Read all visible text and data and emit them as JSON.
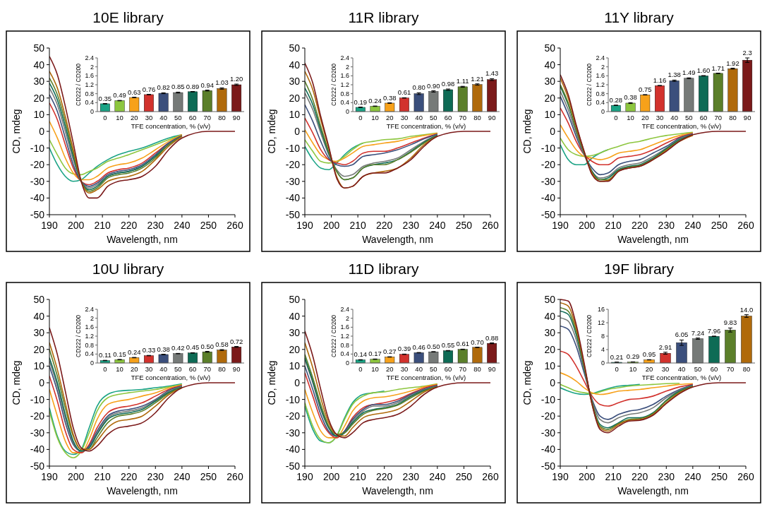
{
  "chart_data": [
    {
      "type": "line",
      "title": "10E library",
      "xlabel": "Wavelength, nm",
      "ylabel": "CD, mdeg",
      "xlim": [
        190,
        260
      ],
      "xticks": [
        190,
        200,
        210,
        220,
        230,
        240,
        250,
        260
      ],
      "ylim": [
        -50,
        50
      ],
      "yticks": [
        -50,
        -40,
        -30,
        -20,
        -10,
        0,
        10,
        20,
        30,
        40,
        50
      ],
      "x": [
        190,
        193,
        196,
        199,
        202,
        205,
        208,
        212,
        216,
        220,
        225,
        230,
        235,
        240,
        250,
        260
      ],
      "series": [
        {
          "color": "#1aa385",
          "values": [
            -10,
            -20,
            -27,
            -30,
            -29,
            -25,
            -21,
            -17,
            -14,
            -12,
            -10,
            -7,
            -4,
            -2,
            null,
            null
          ]
        },
        {
          "color": "#8dc63f",
          "values": [
            -5,
            -14,
            -22,
            -25.5,
            -26,
            -24,
            -22,
            -18,
            -16,
            -14,
            -11,
            -8,
            -5,
            -2,
            null,
            null
          ]
        },
        {
          "color": "#f7a11a",
          "values": [
            6,
            -4,
            -16,
            -25,
            -29,
            -29,
            -27,
            -22,
            -20,
            -19,
            -16,
            -11,
            -6,
            -2,
            null,
            null
          ]
        },
        {
          "color": "#d2322d",
          "values": [
            17,
            7,
            -8,
            -22,
            -30,
            -32,
            -30,
            -25,
            -23,
            -22,
            -19,
            -13,
            -7,
            -2.5,
            null,
            null
          ]
        },
        {
          "color": "#3b4f7c",
          "values": [
            22,
            12,
            -4,
            -20,
            -30,
            -33,
            -31,
            -26,
            -24,
            -23,
            -20,
            -14,
            -7,
            -2.5,
            null,
            null
          ]
        },
        {
          "color": "#767a78",
          "values": [
            26,
            16,
            0,
            -17,
            -30,
            -34,
            -32,
            -27,
            -25,
            -24,
            -21,
            -15,
            -8,
            -3,
            null,
            null
          ]
        },
        {
          "color": "#0e6b55",
          "values": [
            29,
            19,
            3,
            -15,
            -30,
            -35,
            -33,
            -27,
            -25,
            -24,
            -21,
            -15,
            -8,
            -3,
            null,
            null
          ]
        },
        {
          "color": "#5b7f2a",
          "values": [
            32,
            22,
            6,
            -13,
            -30,
            -36,
            -34,
            -28,
            -26,
            -25,
            -22,
            -16,
            -8,
            -3,
            null,
            null
          ]
        },
        {
          "color": "#b06a0b",
          "values": [
            36,
            26,
            9,
            -11,
            -30,
            -37,
            -35,
            -30,
            -28,
            -27,
            -24,
            -17,
            -9,
            -3,
            null,
            null
          ]
        },
        {
          "color": "#7b1a1a",
          "values": [
            45,
            34,
            15,
            -7,
            -30,
            -40,
            -40,
            -33,
            -30,
            -29,
            -27,
            -21,
            -11,
            -4,
            0,
            0
          ]
        }
      ]
    },
    {
      "type": "bar",
      "xlabel": "TFE concentration, % (v/v)",
      "ylabel": "CD222 / CD200",
      "categories": [
        "0",
        "10",
        "20",
        "30",
        "40",
        "50",
        "60",
        "70",
        "80",
        "90"
      ],
      "values": [
        0.35,
        0.49,
        0.63,
        0.76,
        0.82,
        0.85,
        0.89,
        0.94,
        1.03,
        1.2
      ],
      "value_labels": [
        "0.35",
        "0.49",
        "0.63",
        "0.76",
        "0.82",
        "0.85",
        "0.89",
        "0.94",
        "1.03",
        "1.20"
      ],
      "errors": [
        0.01,
        0.01,
        0.01,
        0.01,
        0.02,
        0.02,
        0.01,
        0.02,
        0.03,
        0.03
      ],
      "colors": [
        "#1aa385",
        "#8dc63f",
        "#f7a11a",
        "#d2322d",
        "#3b4f7c",
        "#767a78",
        "#0e6b55",
        "#5b7f2a",
        "#b06a0b",
        "#7b1a1a"
      ],
      "ylim": [
        0,
        2.4
      ],
      "yticks": [
        0,
        0.4,
        0.8,
        1.2,
        1.6,
        2,
        2.4
      ]
    },
    {
      "type": "line",
      "title": "11R library",
      "xlabel": "Wavelength, nm",
      "ylabel": "CD, mdeg",
      "xlim": [
        190,
        260
      ],
      "xticks": [
        190,
        200,
        210,
        220,
        230,
        240,
        250,
        260
      ],
      "ylim": [
        -50,
        50
      ],
      "yticks": [
        -50,
        -40,
        -30,
        -20,
        -10,
        0,
        10,
        20,
        30,
        40,
        50
      ],
      "x": [
        190,
        193,
        196,
        199,
        202,
        205,
        208,
        212,
        216,
        220,
        225,
        230,
        235,
        240,
        250,
        260
      ],
      "series": [
        {
          "color": "#1aa385",
          "values": [
            -9,
            -17,
            -22,
            -23,
            -19,
            -14,
            -10,
            -7,
            null,
            null,
            null,
            null,
            null,
            null,
            null,
            null
          ]
        },
        {
          "color": "#8dc63f",
          "values": [
            -5,
            -12,
            -18,
            -19,
            -18,
            -15,
            -11,
            -7,
            -6,
            -5,
            -4.5,
            -3,
            -2,
            -1,
            null,
            null
          ]
        },
        {
          "color": "#f7a11a",
          "values": [
            1,
            -7,
            -14,
            -17,
            -18,
            -16,
            -13,
            -9,
            -8,
            -7,
            -6,
            -4,
            -2.5,
            -1.2,
            null,
            null
          ]
        },
        {
          "color": "#d2322d",
          "values": [
            8,
            -1,
            -11,
            -17,
            -19,
            -20,
            -18,
            -13,
            -12,
            -12,
            -10,
            -7,
            -4,
            -1.5,
            null,
            null
          ]
        },
        {
          "color": "#3b4f7c",
          "values": [
            16,
            6,
            -6,
            -16,
            -20,
            -21,
            -20,
            -15,
            -14,
            -13,
            -11,
            -8,
            -4.5,
            -1.7,
            null,
            null
          ]
        },
        {
          "color": "#767a78",
          "values": [
            23,
            13,
            -1,
            -14,
            -23,
            -27,
            -26,
            -21,
            -19,
            -18,
            -16,
            -11,
            -6,
            -2,
            null,
            null
          ]
        },
        {
          "color": "#0e6b55",
          "values": [
            26,
            16,
            1,
            -13,
            -24,
            -29,
            -28,
            -22,
            -20,
            -19,
            -17,
            -12,
            -6.5,
            -2.3,
            null,
            null
          ]
        },
        {
          "color": "#5b7f2a",
          "values": [
            30,
            19,
            3,
            -12,
            -24,
            -29,
            -28,
            -22,
            -20,
            -20,
            -17,
            -12.5,
            -7,
            -2.6,
            null,
            null
          ]
        },
        {
          "color": "#b06a0b",
          "values": [
            36,
            25,
            7,
            -10,
            -27,
            -34,
            -33,
            -27,
            -25,
            -24,
            -22,
            -16,
            -8,
            -3,
            null,
            null
          ]
        },
        {
          "color": "#7b1a1a",
          "values": [
            41,
            29,
            9,
            -9,
            -28,
            -34,
            -33,
            -27,
            -25,
            -25,
            -22,
            -17,
            -9,
            -3,
            0,
            0
          ]
        }
      ]
    },
    {
      "type": "bar",
      "xlabel": "TFE concentration, % (v/v)",
      "ylabel": "CD222 / CD200",
      "categories": [
        "0",
        "10",
        "20",
        "30",
        "40",
        "50",
        "60",
        "70",
        "80",
        "90"
      ],
      "values": [
        0.19,
        0.24,
        0.38,
        0.61,
        0.8,
        0.9,
        0.98,
        1.11,
        1.21,
        1.43
      ],
      "value_labels": [
        "0.19",
        "0.24",
        "0.38",
        "0.61",
        "0.80",
        "0.90",
        "0.98",
        "1.11",
        "1.21",
        "1.43"
      ],
      "errors": [
        0.01,
        0.01,
        0.01,
        0.01,
        0.04,
        0.03,
        0.03,
        0.02,
        0.03,
        0.04
      ],
      "colors": [
        "#1aa385",
        "#8dc63f",
        "#f7a11a",
        "#d2322d",
        "#3b4f7c",
        "#767a78",
        "#0e6b55",
        "#5b7f2a",
        "#b06a0b",
        "#7b1a1a"
      ],
      "ylim": [
        0,
        2.4
      ],
      "yticks": [
        0,
        0.4,
        0.8,
        1.2,
        1.6,
        2,
        2.4
      ]
    },
    {
      "type": "line",
      "title": "11Y library",
      "xlabel": "Wavelength, nm",
      "ylabel": "CD, mdeg",
      "xlim": [
        190,
        260
      ],
      "xticks": [
        190,
        200,
        210,
        220,
        230,
        240,
        250,
        260
      ],
      "ylim": [
        -50,
        50
      ],
      "yticks": [
        -50,
        -40,
        -30,
        -20,
        -10,
        0,
        10,
        20,
        30,
        40,
        50
      ],
      "x": [
        190,
        193,
        196,
        199,
        202,
        205,
        208,
        212,
        216,
        220,
        225,
        230,
        235,
        240,
        250,
        260
      ],
      "series": [
        {
          "color": "#1aa385",
          "values": [
            -8,
            -17,
            -20,
            -20,
            -16,
            -13,
            -11,
            null,
            null,
            null,
            null,
            null,
            null,
            null,
            null,
            null
          ]
        },
        {
          "color": "#8dc63f",
          "values": [
            -4,
            -11,
            -14,
            -15,
            -14.5,
            -13,
            -11,
            -9,
            -7,
            -6,
            -4,
            -2.5,
            -1.5,
            -0.5,
            null,
            null
          ]
        },
        {
          "color": "#f7a11a",
          "values": [
            4,
            -4,
            -11,
            -15,
            -16,
            -17,
            -16,
            -13,
            -12,
            -11,
            -8,
            -5,
            -2.5,
            -1,
            null,
            null
          ]
        },
        {
          "color": "#d2322d",
          "values": [
            14,
            5,
            -6,
            -14,
            -18,
            -20,
            -20,
            -16,
            -15,
            -14,
            -11,
            -7,
            -3.5,
            -1.2,
            null,
            null
          ]
        },
        {
          "color": "#3b4f7c",
          "values": [
            21,
            10,
            -3,
            -14,
            -22,
            -26,
            -25,
            -20,
            -18,
            -17,
            -13,
            -9,
            -4,
            -1.5,
            null,
            null
          ]
        },
        {
          "color": "#767a78",
          "values": [
            24,
            13,
            -1,
            -14,
            -24,
            -28,
            -27,
            -22,
            -20,
            -19,
            -15,
            -10,
            -4.5,
            -1.7,
            null,
            null
          ]
        },
        {
          "color": "#0e6b55",
          "values": [
            27,
            16,
            1,
            -13,
            -24,
            -29,
            -28,
            -23,
            -21,
            -20,
            -16,
            -10.5,
            -5,
            -2,
            null,
            null
          ]
        },
        {
          "color": "#5b7f2a",
          "values": [
            28,
            17,
            1,
            -13,
            -25,
            -29,
            -29,
            -23.5,
            -21.5,
            -20.5,
            -16.5,
            -11,
            -5.5,
            -2.2,
            null,
            null
          ]
        },
        {
          "color": "#b06a0b",
          "values": [
            32,
            20,
            3,
            -12,
            -25,
            -30,
            -29.5,
            -24,
            -22,
            -21,
            -17,
            -11.5,
            -6,
            -2.4,
            null,
            null
          ]
        },
        {
          "color": "#7b1a1a",
          "values": [
            34,
            22,
            4,
            -12,
            -26,
            -30,
            -30,
            -24,
            -22,
            -21,
            -17,
            -12,
            -6,
            -2,
            0,
            0
          ]
        }
      ]
    },
    {
      "type": "bar",
      "xlabel": "TFE concentration, % (v/v)",
      "ylabel": "CD222 / CD200",
      "categories": [
        "0",
        "10",
        "20",
        "30",
        "40",
        "50",
        "60",
        "70",
        "80",
        "90"
      ],
      "values": [
        0.28,
        0.38,
        0.75,
        1.16,
        1.38,
        1.49,
        1.6,
        1.71,
        1.92,
        2.3
      ],
      "value_labels": [
        "0.28",
        "0.38",
        "0.75",
        "1.16",
        "1.38",
        "1.49",
        "1.60",
        "1.71",
        "1.92",
        "2.3"
      ],
      "errors": [
        0.01,
        0.02,
        0.01,
        0.01,
        0.03,
        0.02,
        0.01,
        0.01,
        0.02,
        0.1
      ],
      "colors": [
        "#1aa385",
        "#8dc63f",
        "#f7a11a",
        "#d2322d",
        "#3b4f7c",
        "#767a78",
        "#0e6b55",
        "#5b7f2a",
        "#b06a0b",
        "#7b1a1a"
      ],
      "ylim": [
        0,
        2.4
      ],
      "yticks": [
        0,
        0.4,
        0.8,
        1.2,
        1.6,
        2,
        2.4
      ]
    },
    {
      "type": "line",
      "title": "10U library",
      "xlabel": "Wavelength, nm",
      "ylabel": "CD, mdeg",
      "xlim": [
        190,
        260
      ],
      "xticks": [
        190,
        200,
        210,
        220,
        230,
        240,
        250,
        260
      ],
      "ylim": [
        -50,
        50
      ],
      "yticks": [
        -50,
        -40,
        -30,
        -20,
        -10,
        0,
        10,
        20,
        30,
        40,
        50
      ],
      "x": [
        190,
        193,
        196,
        199,
        202,
        205,
        208,
        212,
        216,
        220,
        225,
        230,
        235,
        240,
        250,
        260
      ],
      "series": [
        {
          "color": "#1aa385",
          "values": [
            -15,
            -32,
            -41,
            -43,
            -40,
            -27,
            -14,
            -7,
            -5,
            -4.5,
            -4,
            -3,
            -2,
            -0.6,
            null,
            null
          ]
        },
        {
          "color": "#8dc63f",
          "values": [
            -17,
            -33,
            -42,
            -45,
            -41,
            -30,
            -17,
            -9,
            -7,
            -6,
            -5,
            -4,
            -2.5,
            -1,
            null,
            null
          ]
        },
        {
          "color": "#f7a11a",
          "values": [
            -4,
            -20,
            -35,
            -42,
            -42,
            -34,
            -22,
            -13,
            -11,
            -10,
            -8,
            -6,
            -3.2,
            -1.3,
            null,
            null
          ]
        },
        {
          "color": "#d2322d",
          "values": [
            4,
            -11,
            -29,
            -40,
            -42,
            -37,
            -27,
            -18,
            -15,
            -14,
            -12,
            -8,
            -4,
            -1.6,
            null,
            null
          ]
        },
        {
          "color": "#3b4f7c",
          "values": [
            10,
            -5,
            -24,
            -37,
            -41,
            -38,
            -29,
            -20,
            -17,
            -16,
            -14,
            -10,
            -4.6,
            -1.9,
            null,
            null
          ]
        },
        {
          "color": "#767a78",
          "values": [
            13,
            -2,
            -21,
            -36,
            -41,
            -39,
            -30,
            -21,
            -18,
            -17,
            -15,
            -10.5,
            -5.2,
            -2.2,
            null,
            null
          ]
        },
        {
          "color": "#0e6b55",
          "values": [
            15,
            0,
            -19,
            -35,
            -41,
            -39,
            -31,
            -22,
            -19,
            -18,
            -16,
            -11,
            -5.8,
            -2.5,
            null,
            null
          ]
        },
        {
          "color": "#5b7f2a",
          "values": [
            20,
            4,
            -15,
            -32,
            -40,
            -40,
            -33,
            -24,
            -20,
            -19,
            -17,
            -12,
            -6.4,
            -2.8,
            null,
            null
          ]
        },
        {
          "color": "#b06a0b",
          "values": [
            24,
            8,
            -12,
            -31,
            -40,
            -40,
            -35,
            -27,
            -23,
            -22,
            -20,
            -14,
            -7.2,
            -3.1,
            null,
            null
          ]
        },
        {
          "color": "#7b1a1a",
          "values": [
            33,
            17,
            -5,
            -27,
            -39,
            -41,
            -38,
            -31,
            -27,
            -26,
            -24,
            -18,
            -9,
            -3,
            0,
            0
          ]
        }
      ]
    },
    {
      "type": "bar",
      "xlabel": "TFE concentration, % (v/v)",
      "ylabel": "CD222 / CD200",
      "categories": [
        "0",
        "10",
        "20",
        "30",
        "40",
        "50",
        "60",
        "70",
        "80",
        "90"
      ],
      "values": [
        0.11,
        0.15,
        0.24,
        0.33,
        0.38,
        0.42,
        0.45,
        0.5,
        0.58,
        0.72
      ],
      "value_labels": [
        "0.11",
        "0.15",
        "0.24",
        "0.33",
        "0.38",
        "0.42",
        "0.45",
        "0.50",
        "0.58",
        "0.72"
      ],
      "errors": [
        0.01,
        0.01,
        0.01,
        0.01,
        0.01,
        0.01,
        0.01,
        0.02,
        0.02,
        0.02
      ],
      "colors": [
        "#1aa385",
        "#8dc63f",
        "#f7a11a",
        "#d2322d",
        "#3b4f7c",
        "#767a78",
        "#0e6b55",
        "#5b7f2a",
        "#b06a0b",
        "#7b1a1a"
      ],
      "ylim": [
        0,
        2.4
      ],
      "yticks": [
        0,
        0.4,
        0.8,
        1.2,
        1.6,
        2,
        2.4
      ]
    },
    {
      "type": "line",
      "title": "11D library",
      "xlabel": "Wavelength, nm",
      "ylabel": "CD, mdeg",
      "xlim": [
        190,
        260
      ],
      "xticks": [
        190,
        200,
        210,
        220,
        230,
        240,
        250,
        260
      ],
      "ylim": [
        -50,
        50
      ],
      "yticks": [
        -50,
        -40,
        -30,
        -20,
        -10,
        0,
        10,
        20,
        30,
        40,
        50
      ],
      "x": [
        190,
        193,
        196,
        199,
        202,
        205,
        208,
        212,
        216,
        220,
        225,
        230,
        235,
        240,
        250,
        260
      ],
      "series": [
        {
          "color": "#1aa385",
          "values": [
            -14,
            -28,
            -35,
            -36,
            -32,
            -21,
            -12,
            -7,
            -6,
            -5,
            null,
            null,
            null,
            null,
            null,
            null
          ]
        },
        {
          "color": "#8dc63f",
          "values": [
            -12,
            -26,
            -34,
            -36,
            -32,
            -22,
            -13,
            -8,
            -6,
            -5.5,
            -4,
            -3,
            -2,
            -0.6,
            null,
            null
          ]
        },
        {
          "color": "#f7a11a",
          "values": [
            -4,
            -18,
            -29,
            -33,
            -33,
            -26,
            -17,
            -11,
            -9,
            -8.5,
            -7,
            -5,
            -2.5,
            -1,
            null,
            null
          ]
        },
        {
          "color": "#d2322d",
          "values": [
            6,
            -8,
            -22,
            -30,
            -33,
            -29,
            -21,
            -15,
            -13,
            -12,
            -10,
            -6.5,
            -3.2,
            -1.3,
            null,
            null
          ]
        },
        {
          "color": "#3b4f7c",
          "values": [
            10,
            -4,
            -19,
            -29,
            -32,
            -29,
            -22,
            -16,
            -13,
            -13,
            -11,
            -7,
            -3.8,
            -1.6,
            null,
            null
          ]
        },
        {
          "color": "#767a78",
          "values": [
            14,
            0,
            -16,
            -27,
            -32,
            -30,
            -23,
            -17,
            -14,
            -14,
            -12,
            -7.6,
            -4.2,
            -1.9,
            null,
            null
          ]
        },
        {
          "color": "#0e6b55",
          "values": [
            15,
            1,
            -15,
            -27,
            -32,
            -30,
            -24,
            -18,
            -16,
            -15,
            -13,
            -8.2,
            -4.6,
            -2.1,
            null,
            null
          ]
        },
        {
          "color": "#5b7f2a",
          "values": [
            17,
            3,
            -13,
            -26,
            -31,
            -30,
            -25,
            -19,
            -16.5,
            -15.5,
            -13.5,
            -9,
            -5,
            -2.3,
            null,
            null
          ]
        },
        {
          "color": "#b06a0b",
          "values": [
            24,
            9,
            -9,
            -24,
            -31,
            -32,
            -27,
            -21,
            -19,
            -18,
            -16,
            -11,
            -5.6,
            -2.6,
            null,
            null
          ]
        },
        {
          "color": "#7b1a1a",
          "values": [
            31,
            16,
            -4,
            -22,
            -31,
            -33,
            -30,
            -24,
            -22,
            -21,
            -19,
            -14,
            -7,
            -2.5,
            0,
            0
          ]
        }
      ]
    },
    {
      "type": "bar",
      "xlabel": "TFE concentration, % (v/v)",
      "ylabel": "CD222 / CD200",
      "categories": [
        "0",
        "10",
        "20",
        "30",
        "40",
        "50",
        "60",
        "70",
        "80",
        "90"
      ],
      "values": [
        0.14,
        0.17,
        0.27,
        0.39,
        0.46,
        0.5,
        0.55,
        0.61,
        0.7,
        0.88
      ],
      "value_labels": [
        "0.14",
        "0.17",
        "0.27",
        "0.39",
        "0.46",
        "0.50",
        "0.55",
        "0.61",
        "0.70",
        "0.88"
      ],
      "errors": [
        0.01,
        0.01,
        0.01,
        0.01,
        0.01,
        0.01,
        0.01,
        0.01,
        0.01,
        0.02
      ],
      "colors": [
        "#1aa385",
        "#8dc63f",
        "#f7a11a",
        "#d2322d",
        "#3b4f7c",
        "#767a78",
        "#0e6b55",
        "#5b7f2a",
        "#b06a0b",
        "#7b1a1a"
      ],
      "ylim": [
        0,
        2.4
      ],
      "yticks": [
        0,
        0.4,
        0.8,
        1.2,
        1.6,
        2,
        2.4
      ]
    },
    {
      "type": "line",
      "title": "19F library",
      "xlabel": "Wavelength, nm",
      "ylabel": "CD, mdeg",
      "xlim": [
        190,
        260
      ],
      "xticks": [
        190,
        200,
        210,
        220,
        230,
        240,
        250,
        260
      ],
      "ylim": [
        -50,
        50
      ],
      "yticks": [
        -50,
        -40,
        -30,
        -20,
        -10,
        0,
        10,
        20,
        30,
        40,
        50
      ],
      "x": [
        190,
        193,
        196,
        199,
        202,
        205,
        208,
        212,
        216,
        220,
        225,
        230,
        235,
        240,
        250,
        260
      ],
      "series": [
        {
          "color": "#1aa385",
          "values": [
            -3,
            -5,
            -6.5,
            -7,
            -6.5,
            -5,
            -3.5,
            -2,
            -1.5,
            -1,
            null,
            null,
            null,
            null,
            null,
            null
          ]
        },
        {
          "color": "#8dc63f",
          "values": [
            -1,
            -3,
            -5,
            -6,
            -6.5,
            -5.5,
            -4,
            -3,
            -2,
            -1.5,
            -1,
            -0.5,
            -0.3,
            null,
            null,
            null
          ]
        },
        {
          "color": "#f7a11a",
          "values": [
            6,
            4,
            1,
            -3,
            -6,
            -7,
            -6.5,
            -5,
            -4.5,
            -4,
            -3,
            -2,
            -1,
            -0.5,
            null,
            null
          ]
        },
        {
          "color": "#d2322d",
          "values": [
            19,
            17,
            10,
            1,
            -8,
            -13,
            -14,
            -12,
            -10,
            -9.5,
            -8,
            -5,
            -2.5,
            -1,
            null,
            null
          ]
        },
        {
          "color": "#3b4f7c",
          "values": [
            34,
            32,
            22,
            6,
            -10,
            -20,
            -22,
            -19,
            -17,
            -16,
            -13,
            -8,
            -4,
            -1.3,
            null,
            null
          ]
        },
        {
          "color": "#767a78",
          "values": [
            39,
            37,
            26,
            8,
            -11,
            -22,
            -24,
            -21,
            -19,
            -18,
            -15,
            -9,
            -4.5,
            -1.6,
            null,
            null
          ]
        },
        {
          "color": "#0e6b55",
          "values": [
            43,
            41,
            29,
            9,
            -12,
            -25,
            -27,
            -24,
            -21,
            -21,
            -18,
            -10.5,
            -5,
            -1.9,
            null,
            null
          ]
        },
        {
          "color": "#5b7f2a",
          "values": [
            45,
            43,
            31,
            10,
            -12,
            -26,
            -28,
            -24.5,
            -22,
            -21.5,
            -18.5,
            -11,
            -5.5,
            -2.1,
            null,
            null
          ]
        },
        {
          "color": "#b06a0b",
          "values": [
            48,
            46,
            33,
            11,
            -13,
            -27,
            -29,
            -25,
            -22.5,
            -22,
            -19,
            -12,
            -6,
            -2.3,
            null,
            null
          ]
        },
        {
          "color": "#7b1a1a",
          "values": [
            50,
            49,
            35,
            12,
            -13,
            -28,
            -30,
            -26,
            -23,
            -22.5,
            -19.5,
            -12.5,
            -6.5,
            -2.5,
            0,
            0
          ]
        }
      ]
    },
    {
      "type": "bar",
      "xlabel": "TFE concentration, % (v/v)",
      "ylabel": "CD222 / CD200",
      "categories": [
        "0",
        "10",
        "20",
        "30",
        "40",
        "50",
        "60",
        "70",
        "80"
      ],
      "values": [
        0.21,
        0.29,
        0.95,
        2.91,
        6.05,
        7.24,
        7.96,
        9.83,
        14.0
      ],
      "value_labels": [
        "0.21",
        "0.29",
        "0.95",
        "2.91",
        "6.05",
        "7.24",
        "7.96",
        "9.83",
        "14.0"
      ],
      "errors": [
        0.05,
        0.05,
        0.05,
        0.3,
        0.8,
        0.2,
        0.05,
        0.6,
        0.4
      ],
      "colors": [
        "#1aa385",
        "#8dc63f",
        "#f7a11a",
        "#d2322d",
        "#3b4f7c",
        "#767a78",
        "#0e6b55",
        "#5b7f2a",
        "#b06a0b"
      ],
      "ylim": [
        0,
        16
      ],
      "yticks": [
        0,
        4,
        8,
        12,
        16
      ]
    }
  ]
}
